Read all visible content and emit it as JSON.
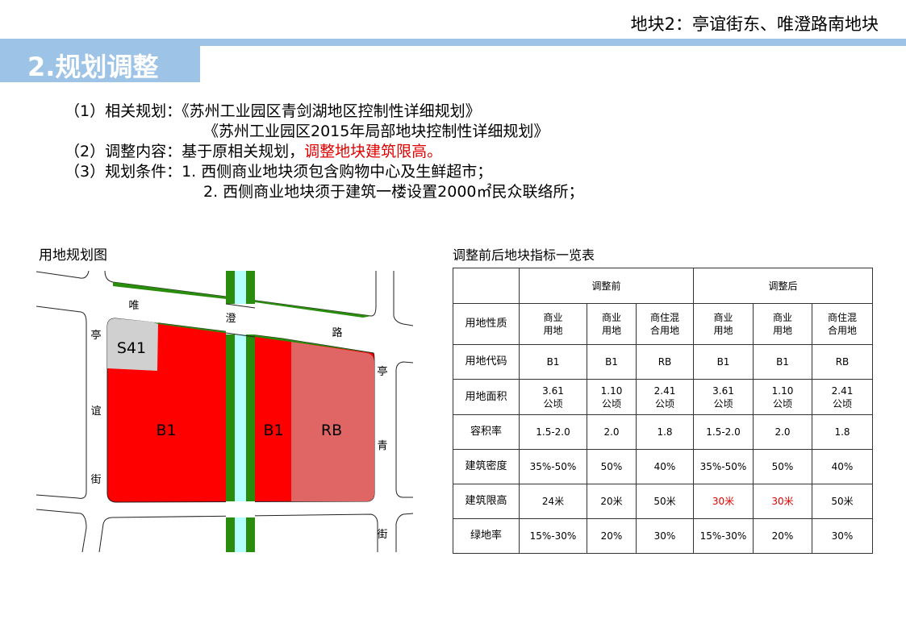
{
  "header": {
    "subtitle": "地块2：亭谊街东、唯澄路南地块",
    "title": "2.规划调整"
  },
  "body": {
    "l1_label": "（1）相关规划：",
    "l1_text": "《苏州工业园区青剑湖地区控制性详细规划》",
    "l2_text": "《苏州工业园区2015年局部地块控制性详细规划》",
    "l3_label": "（2）调整内容：",
    "l3_text": "基于原相关规划，",
    "l3_red": "调整地块建筑限高。",
    "l4_label": "（3）规划条件：",
    "l4_text": "1. 西侧商业地块须包含购物中心及生鲜超市；",
    "l5_text": "2. 西侧商业地块须于建筑一楼设置2000㎡民众联络所；"
  },
  "map": {
    "caption": "用地规划图",
    "parcels": [
      "S41",
      "B1",
      "B1",
      "RB"
    ],
    "road_labels": {
      "north": [
        "唯",
        "澄",
        "路"
      ],
      "west": [
        "亭",
        "谊",
        "街"
      ],
      "east": [
        "亭",
        "青",
        "街"
      ]
    },
    "colors": {
      "commercial": "#ff0000",
      "mixed": "#e06666",
      "s41": "#d0d0d0",
      "green": "#2a8c0c",
      "water": "#b3ffff"
    }
  },
  "table": {
    "caption": "调整前后地块指标一览表",
    "groups": [
      "调整前",
      "调整后"
    ],
    "rows": [
      {
        "label": "用地性质",
        "cells": [
          "商业\n用地",
          "商业\n用地",
          "商住混\n合用地",
          "商业\n用地",
          "商业\n用地",
          "商住混\n合用地"
        ]
      },
      {
        "label": "用地代码",
        "cells": [
          "B1",
          "B1",
          "RB",
          "B1",
          "B1",
          "RB"
        ]
      },
      {
        "label": "用地面积",
        "cells": [
          "3.61\n公顷",
          "1.10\n公顷",
          "2.41\n公顷",
          "3.61\n公顷",
          "1.10\n公顷",
          "2.41\n公顷"
        ]
      },
      {
        "label": "容积率",
        "cells": [
          "1.5-2.0",
          "2.0",
          "1.8",
          "1.5-2.0",
          "2.0",
          "1.8"
        ]
      },
      {
        "label": "建筑密度",
        "cells": [
          "35%-50%",
          "50%",
          "40%",
          "35%-50%",
          "50%",
          "40%"
        ]
      },
      {
        "label": "建筑限高",
        "cells": [
          "24米",
          "20米",
          "50米",
          "30米",
          "30米",
          "50米"
        ],
        "highlight": [
          3,
          4
        ]
      },
      {
        "label": "绿地率",
        "cells": [
          "15%-30%",
          "20%",
          "30%",
          "15%-30%",
          "20%",
          "30%"
        ]
      }
    ],
    "highlight_color": "#e00000"
  }
}
